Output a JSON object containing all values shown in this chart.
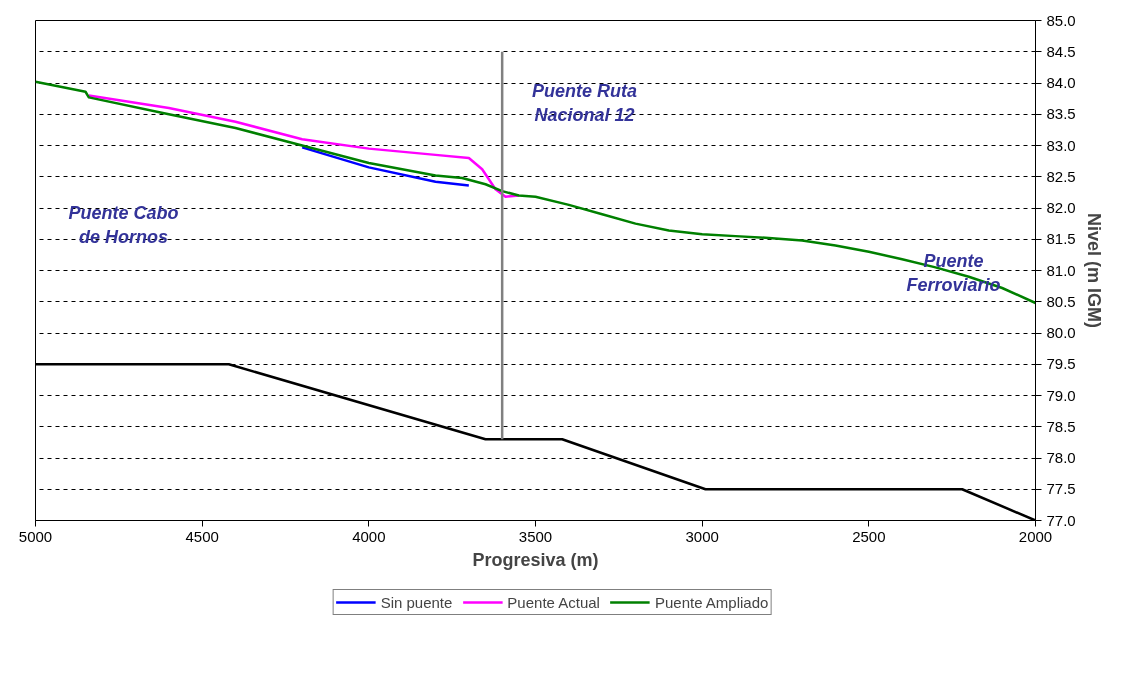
{
  "chart_data": {
    "type": "line",
    "xlabel": "Progresiva (m)",
    "ylabel": "Nivel (m IGM)",
    "xlim": [
      5000,
      2000
    ],
    "xticks": [
      5000,
      4500,
      4000,
      3500,
      3000,
      2500,
      2000
    ],
    "ylim": [
      77.0,
      85.0
    ],
    "yticks": [
      {
        "value": 77.0,
        "label": "77.0"
      },
      {
        "value": 77.5,
        "label": "77.5"
      },
      {
        "value": 78.0,
        "label": "78.0"
      },
      {
        "value": 78.5,
        "label": "78.5"
      },
      {
        "value": 79.0,
        "label": "79.0"
      },
      {
        "value": 79.5,
        "label": "79.5"
      },
      {
        "value": 80.0,
        "label": "80.0"
      },
      {
        "value": 80.5,
        "label": "80.5"
      },
      {
        "value": 81.0,
        "label": "81.0"
      },
      {
        "value": 81.5,
        "label": "81.5"
      },
      {
        "value": 82.0,
        "label": "82.0"
      },
      {
        "value": 82.5,
        "label": "82.5"
      },
      {
        "value": 83.0,
        "label": "83.0"
      },
      {
        "value": 83.5,
        "label": "83.5"
      },
      {
        "value": 84.0,
        "label": "84.0"
      },
      {
        "value": 84.5,
        "label": "84.5"
      },
      {
        "value": 85.0,
        "label": "85.0"
      }
    ],
    "grid": "y",
    "legend": "bottom",
    "line_style": "solid",
    "series": [
      {
        "name": "Sin puente",
        "color": "#0000ff",
        "x": [
          4200,
          4000,
          3800,
          3700
        ],
        "values": [
          82.97,
          82.65,
          82.42,
          82.36
        ]
      },
      {
        "name": "Puente Actual",
        "color": "#ff00ff",
        "x": [
          4840,
          4600,
          4400,
          4200,
          4000,
          3800,
          3700,
          3660,
          3620,
          3590,
          3550
        ],
        "values": [
          83.8,
          83.6,
          83.38,
          83.1,
          82.95,
          82.85,
          82.8,
          82.62,
          82.3,
          82.18,
          82.2
        ]
      },
      {
        "name": "Puente Ampliado",
        "color": "#008000",
        "x": [
          5000,
          4850,
          4840,
          4600,
          4400,
          4200,
          4000,
          3800,
          3720,
          3650,
          3600,
          3550,
          3500,
          3400,
          3300,
          3200,
          3100,
          3000,
          2900,
          2800,
          2700,
          2600,
          2500,
          2400,
          2300,
          2200,
          2100,
          2000
        ],
        "values": [
          84.02,
          83.86,
          83.77,
          83.5,
          83.28,
          83.0,
          82.72,
          82.52,
          82.48,
          82.38,
          82.27,
          82.2,
          82.18,
          82.05,
          81.9,
          81.75,
          81.64,
          81.58,
          81.55,
          81.52,
          81.48,
          81.4,
          81.3,
          81.18,
          81.05,
          80.9,
          80.72,
          80.48
        ]
      },
      {
        "color": "#000000",
        "x": [
          5000,
          4420,
          3650,
          3420,
          2990,
          2220,
          2000
        ],
        "values": [
          79.5,
          79.5,
          78.3,
          78.3,
          77.5,
          77.5,
          77.0
        ]
      },
      {
        "color": "#808080",
        "x": [
          3600,
          3600
        ],
        "values": [
          78.3,
          84.5
        ]
      }
    ],
    "annotations": [
      "Puente Cabo\nde Hornos",
      "Puente Ruta\nNacional 12",
      "Puente\nFerroviario"
    ]
  }
}
